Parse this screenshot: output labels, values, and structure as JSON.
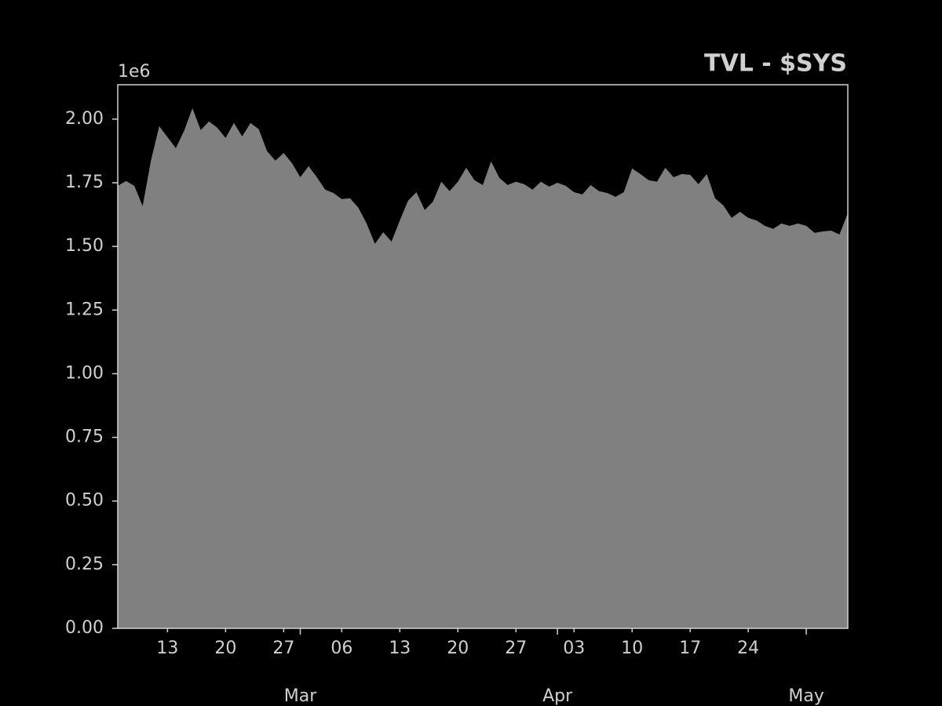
{
  "chart_data": {
    "type": "area",
    "title": "TVL - $SYS",
    "y_offset_label": "1e6",
    "x": [
      "Feb 07",
      "Feb 08",
      "Feb 09",
      "Feb 10",
      "Feb 11",
      "Feb 12",
      "Feb 13",
      "Feb 14",
      "Feb 15",
      "Feb 16",
      "Feb 17",
      "Feb 18",
      "Feb 19",
      "Feb 20",
      "Feb 21",
      "Feb 22",
      "Feb 23",
      "Feb 24",
      "Feb 25",
      "Feb 26",
      "Feb 27",
      "Feb 28",
      "Mar 01",
      "Mar 02",
      "Mar 03",
      "Mar 04",
      "Mar 05",
      "Mar 06",
      "Mar 07",
      "Mar 08",
      "Mar 09",
      "Mar 10",
      "Mar 11",
      "Mar 12",
      "Mar 13",
      "Mar 14",
      "Mar 15",
      "Mar 16",
      "Mar 17",
      "Mar 18",
      "Mar 19",
      "Mar 20",
      "Mar 21",
      "Mar 22",
      "Mar 23",
      "Mar 24",
      "Mar 25",
      "Mar 26",
      "Mar 27",
      "Mar 28",
      "Mar 29",
      "Mar 30",
      "Mar 31",
      "Apr 01",
      "Apr 02",
      "Apr 03",
      "Apr 04",
      "Apr 05",
      "Apr 06",
      "Apr 07",
      "Apr 08",
      "Apr 09",
      "Apr 10",
      "Apr 11",
      "Apr 12",
      "Apr 13",
      "Apr 14",
      "Apr 15",
      "Apr 16",
      "Apr 17",
      "Apr 18",
      "Apr 19",
      "Apr 20",
      "Apr 21",
      "Apr 22",
      "Apr 23",
      "Apr 24",
      "Apr 25",
      "Apr 26",
      "Apr 27",
      "Apr 28",
      "Apr 29",
      "Apr 30",
      "May 01",
      "May 02",
      "May 03",
      "May 04",
      "May 05",
      "May 06"
    ],
    "values": [
      1738000,
      1757000,
      1738000,
      1658000,
      1837000,
      1972000,
      1929000,
      1886000,
      1954000,
      2043000,
      1957000,
      1991000,
      1966000,
      1926000,
      1985000,
      1932000,
      1985000,
      1960000,
      1874000,
      1837000,
      1867000,
      1827000,
      1772000,
      1815000,
      1772000,
      1723000,
      1710000,
      1686000,
      1689000,
      1652000,
      1590000,
      1510000,
      1556000,
      1519000,
      1602000,
      1680000,
      1713000,
      1643000,
      1676000,
      1754000,
      1717000,
      1754000,
      1809000,
      1760000,
      1741000,
      1834000,
      1769000,
      1741000,
      1754000,
      1744000,
      1723000,
      1754000,
      1735000,
      1750000,
      1738000,
      1713000,
      1704000,
      1741000,
      1717000,
      1710000,
      1695000,
      1713000,
      1806000,
      1784000,
      1760000,
      1754000,
      1809000,
      1772000,
      1784000,
      1781000,
      1744000,
      1784000,
      1689000,
      1661000,
      1612000,
      1636000,
      1612000,
      1602000,
      1581000,
      1569000,
      1590000,
      1581000,
      1590000,
      1581000,
      1553000,
      1559000,
      1562000,
      1547000,
      1630000
    ],
    "color": "#808080",
    "ylim": [
      0,
      2135000
    ],
    "yticks": [
      {
        "value": 0,
        "label": "0.00"
      },
      {
        "value": 250000,
        "label": "0.25"
      },
      {
        "value": 500000,
        "label": "0.50"
      },
      {
        "value": 750000,
        "label": "0.75"
      },
      {
        "value": 1000000,
        "label": "1.00"
      },
      {
        "value": 1250000,
        "label": "1.25"
      },
      {
        "value": 1500000,
        "label": "1.50"
      },
      {
        "value": 1750000,
        "label": "1.75"
      },
      {
        "value": 2000000,
        "label": "2.00"
      }
    ],
    "xticks": [
      {
        "value": "Feb 13",
        "label": "13"
      },
      {
        "value": "Feb 20",
        "label": "20"
      },
      {
        "value": "Feb 27",
        "label": "27"
      },
      {
        "value": "Mar 06",
        "label": "06"
      },
      {
        "value": "Mar 13",
        "label": "13"
      },
      {
        "value": "Mar 20",
        "label": "20"
      },
      {
        "value": "Mar 27",
        "label": "27"
      },
      {
        "value": "Apr 03",
        "label": "03"
      },
      {
        "value": "Apr 10",
        "label": "10"
      },
      {
        "value": "Apr 17",
        "label": "17"
      },
      {
        "value": "Apr 24",
        "label": "24"
      }
    ],
    "month_ticks": [
      {
        "value": "Mar 01",
        "label": "Mar"
      },
      {
        "value": "Apr 01",
        "label": "Apr"
      },
      {
        "value": "May 01",
        "label": "May"
      }
    ]
  }
}
